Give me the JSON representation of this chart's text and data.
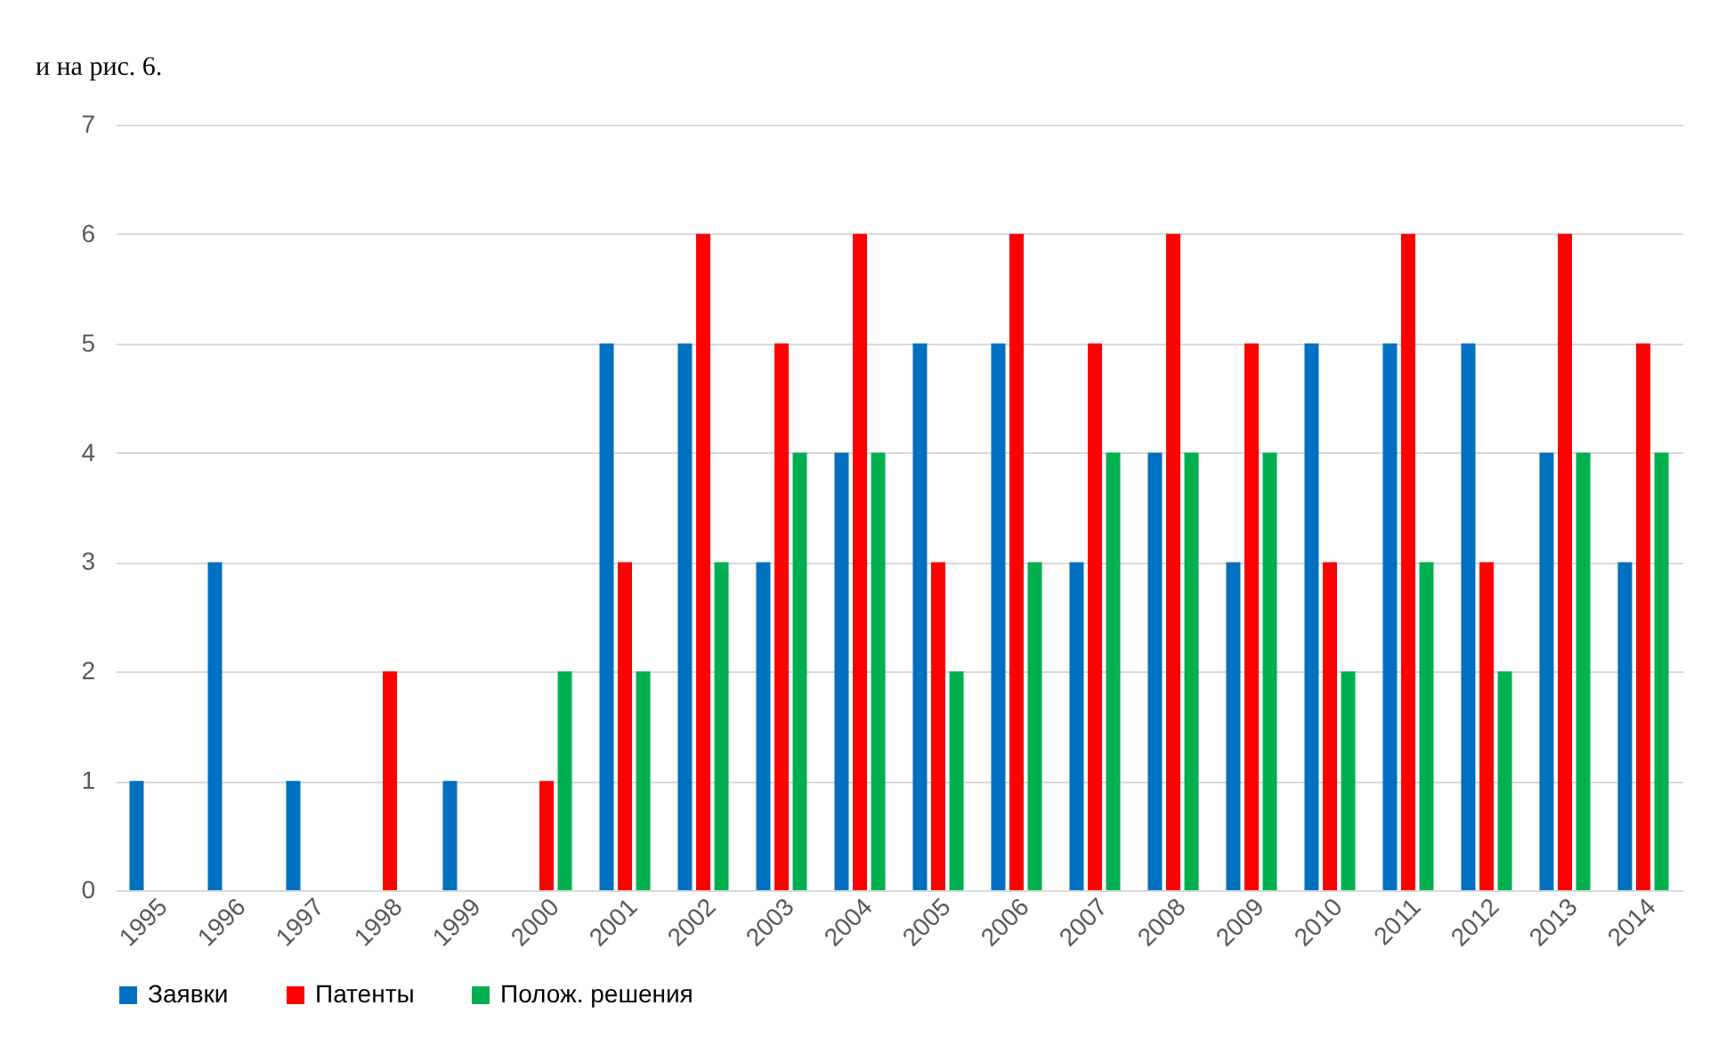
{
  "chart_data": {
    "type": "bar",
    "annotations": [
      "и на рис. 6."
    ],
    "categories": [
      "1995",
      "1996",
      "1997",
      "1998",
      "1999",
      "2000",
      "2001",
      "2002",
      "2003",
      "2004",
      "2005",
      "2006",
      "2007",
      "2008",
      "2009",
      "2010",
      "2011",
      "2012",
      "2013",
      "2014"
    ],
    "series": [
      {
        "name": "Заявки",
        "color": "#0070c0",
        "values": [
          1,
          3,
          1,
          0,
          1,
          0,
          5,
          5,
          3,
          4,
          5,
          5,
          3,
          4,
          3,
          5,
          5,
          5,
          4,
          3
        ]
      },
      {
        "name": "Патенты",
        "color": "#ff0000",
        "values": [
          0,
          0,
          0,
          2,
          0,
          1,
          3,
          6,
          5,
          6,
          3,
          6,
          5,
          6,
          5,
          3,
          6,
          3,
          6,
          5
        ]
      },
      {
        "name": "Полож. решения",
        "color": "#00b050",
        "values": [
          0,
          0,
          0,
          0,
          0,
          2,
          2,
          3,
          4,
          4,
          2,
          3,
          4,
          4,
          4,
          2,
          3,
          2,
          4,
          4
        ]
      }
    ],
    "ylim": [
      0,
      7
    ],
    "yticks": [
      0,
      1,
      2,
      3,
      4,
      5,
      6,
      7
    ],
    "grid": "y",
    "legend": "bottom"
  }
}
